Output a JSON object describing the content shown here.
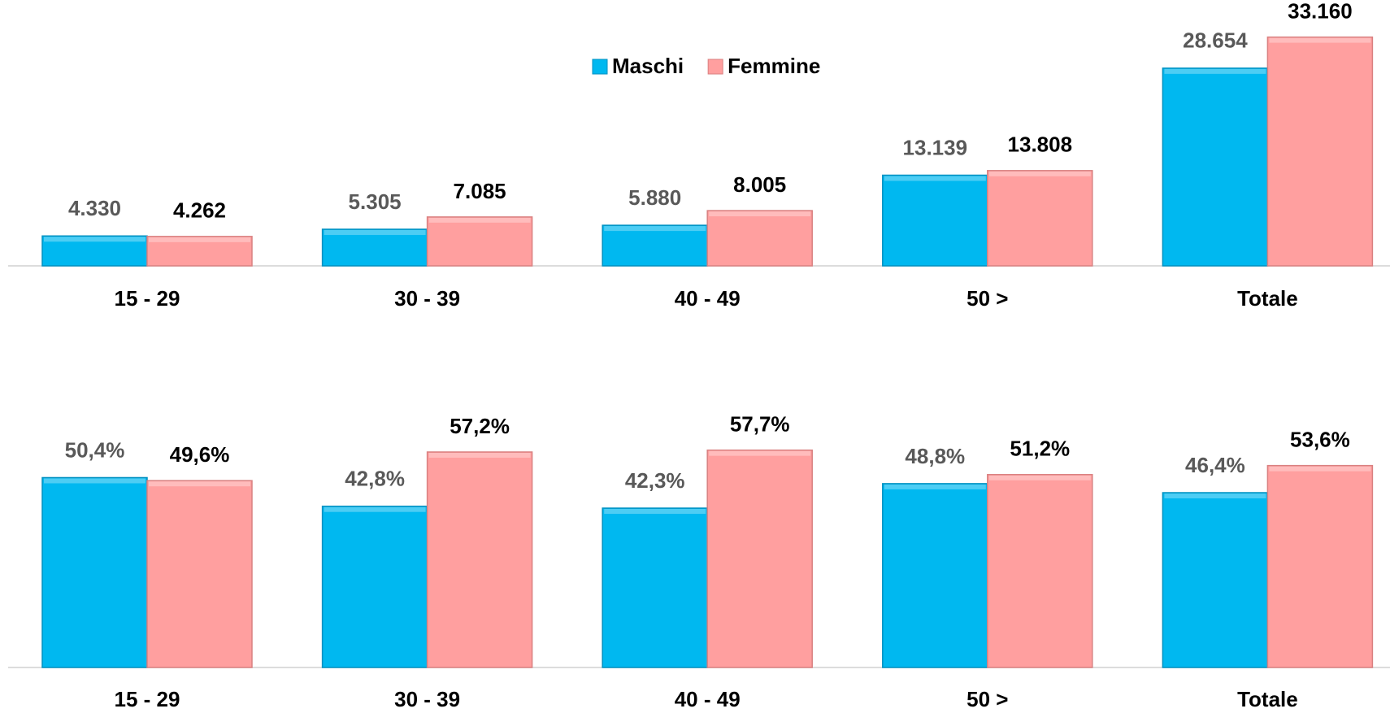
{
  "chart_data": [
    {
      "type": "bar",
      "categories": [
        "15 - 29",
        "30 - 39",
        "40 - 49",
        "50 >",
        "Totale"
      ],
      "series": [
        {
          "name": "Maschi",
          "color": "#00b8f0",
          "values": [
            4330,
            5305,
            5880,
            13139,
            28654
          ],
          "value_labels": [
            "4.330",
            "5.305",
            "5.880",
            "13.139",
            "28.654"
          ]
        },
        {
          "name": "Femmine",
          "color": "#ff9f9f",
          "values": [
            4262,
            7085,
            8005,
            13808,
            33160
          ],
          "value_labels": [
            "4.262",
            "7.085",
            "8.005",
            "13.808",
            "33.160"
          ]
        }
      ],
      "ylim": [
        0,
        35000
      ],
      "legend": "top"
    },
    {
      "type": "bar",
      "categories": [
        "15 - 29",
        "30 - 39",
        "40 - 49",
        "50 >",
        "Totale"
      ],
      "series": [
        {
          "color": "#00b8f0",
          "values": [
            50.4,
            42.8,
            42.3,
            48.8,
            46.4
          ],
          "value_labels": [
            "50,4%",
            "42,8%",
            "42,3%",
            "48,8%",
            "46,4%"
          ]
        },
        {
          "color": "#ff9f9f",
          "values": [
            49.6,
            57.2,
            57.7,
            51.2,
            53.6
          ],
          "value_labels": [
            "49,6%",
            "57,2%",
            "57,7%",
            "51,2%",
            "53,6%"
          ]
        }
      ],
      "ylim": [
        0,
        60
      ]
    }
  ]
}
